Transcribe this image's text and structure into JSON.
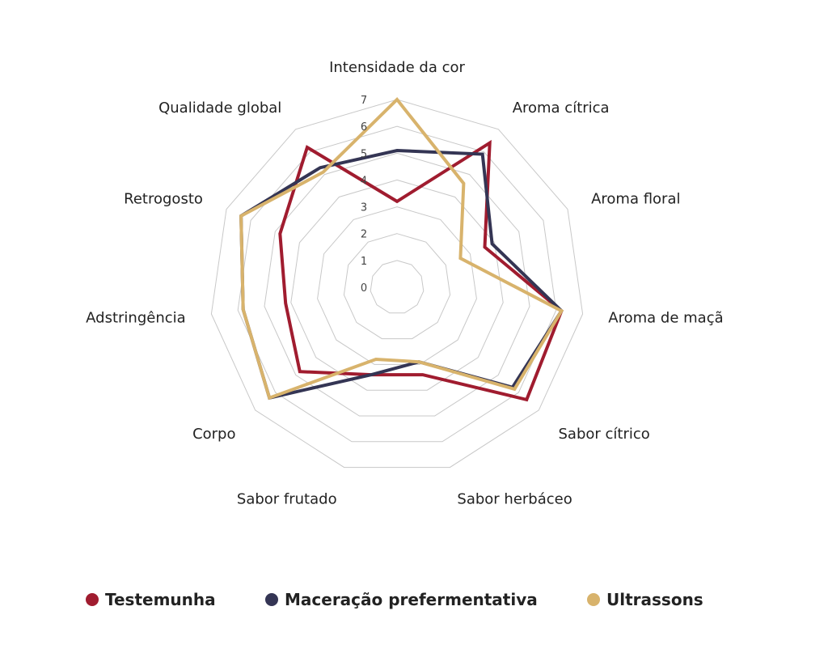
{
  "chart_data": {
    "type": "radar",
    "axes": [
      "Intensidade da cor",
      "Aroma cítrica",
      "Aroma floral",
      "Aroma de maçã",
      "Sabor cítrico",
      "Sabor herbáceo",
      "Sabor frutado",
      "Corpo",
      "Adstringência",
      "Retrogosto",
      "Qualidade global"
    ],
    "ticks": [
      "0",
      "1",
      "2",
      "3",
      "4",
      "5",
      "6",
      "7"
    ],
    "rmin": 0,
    "rmax": 7,
    "series": [
      {
        "name": "Testemunha",
        "color": "#a01c2f",
        "values": [
          3.2,
          6.4,
          3.6,
          6.2,
          6.4,
          3.4,
          3.4,
          4.8,
          4.2,
          4.8,
          6.2
        ]
      },
      {
        "name": "Maceração prefermentativa",
        "color": "#343554",
        "values": [
          5.1,
          5.9,
          3.9,
          6.2,
          5.7,
          2.9,
          3.4,
          6.3,
          5.8,
          6.4,
          5.3
        ]
      },
      {
        "name": "Ultrassons",
        "color": "#d8b36c",
        "values": [
          7.0,
          4.6,
          2.6,
          6.2,
          5.8,
          2.9,
          2.8,
          6.3,
          5.8,
          6.4,
          5.1
        ]
      }
    ],
    "grid": true,
    "legend_position": "bottom"
  }
}
